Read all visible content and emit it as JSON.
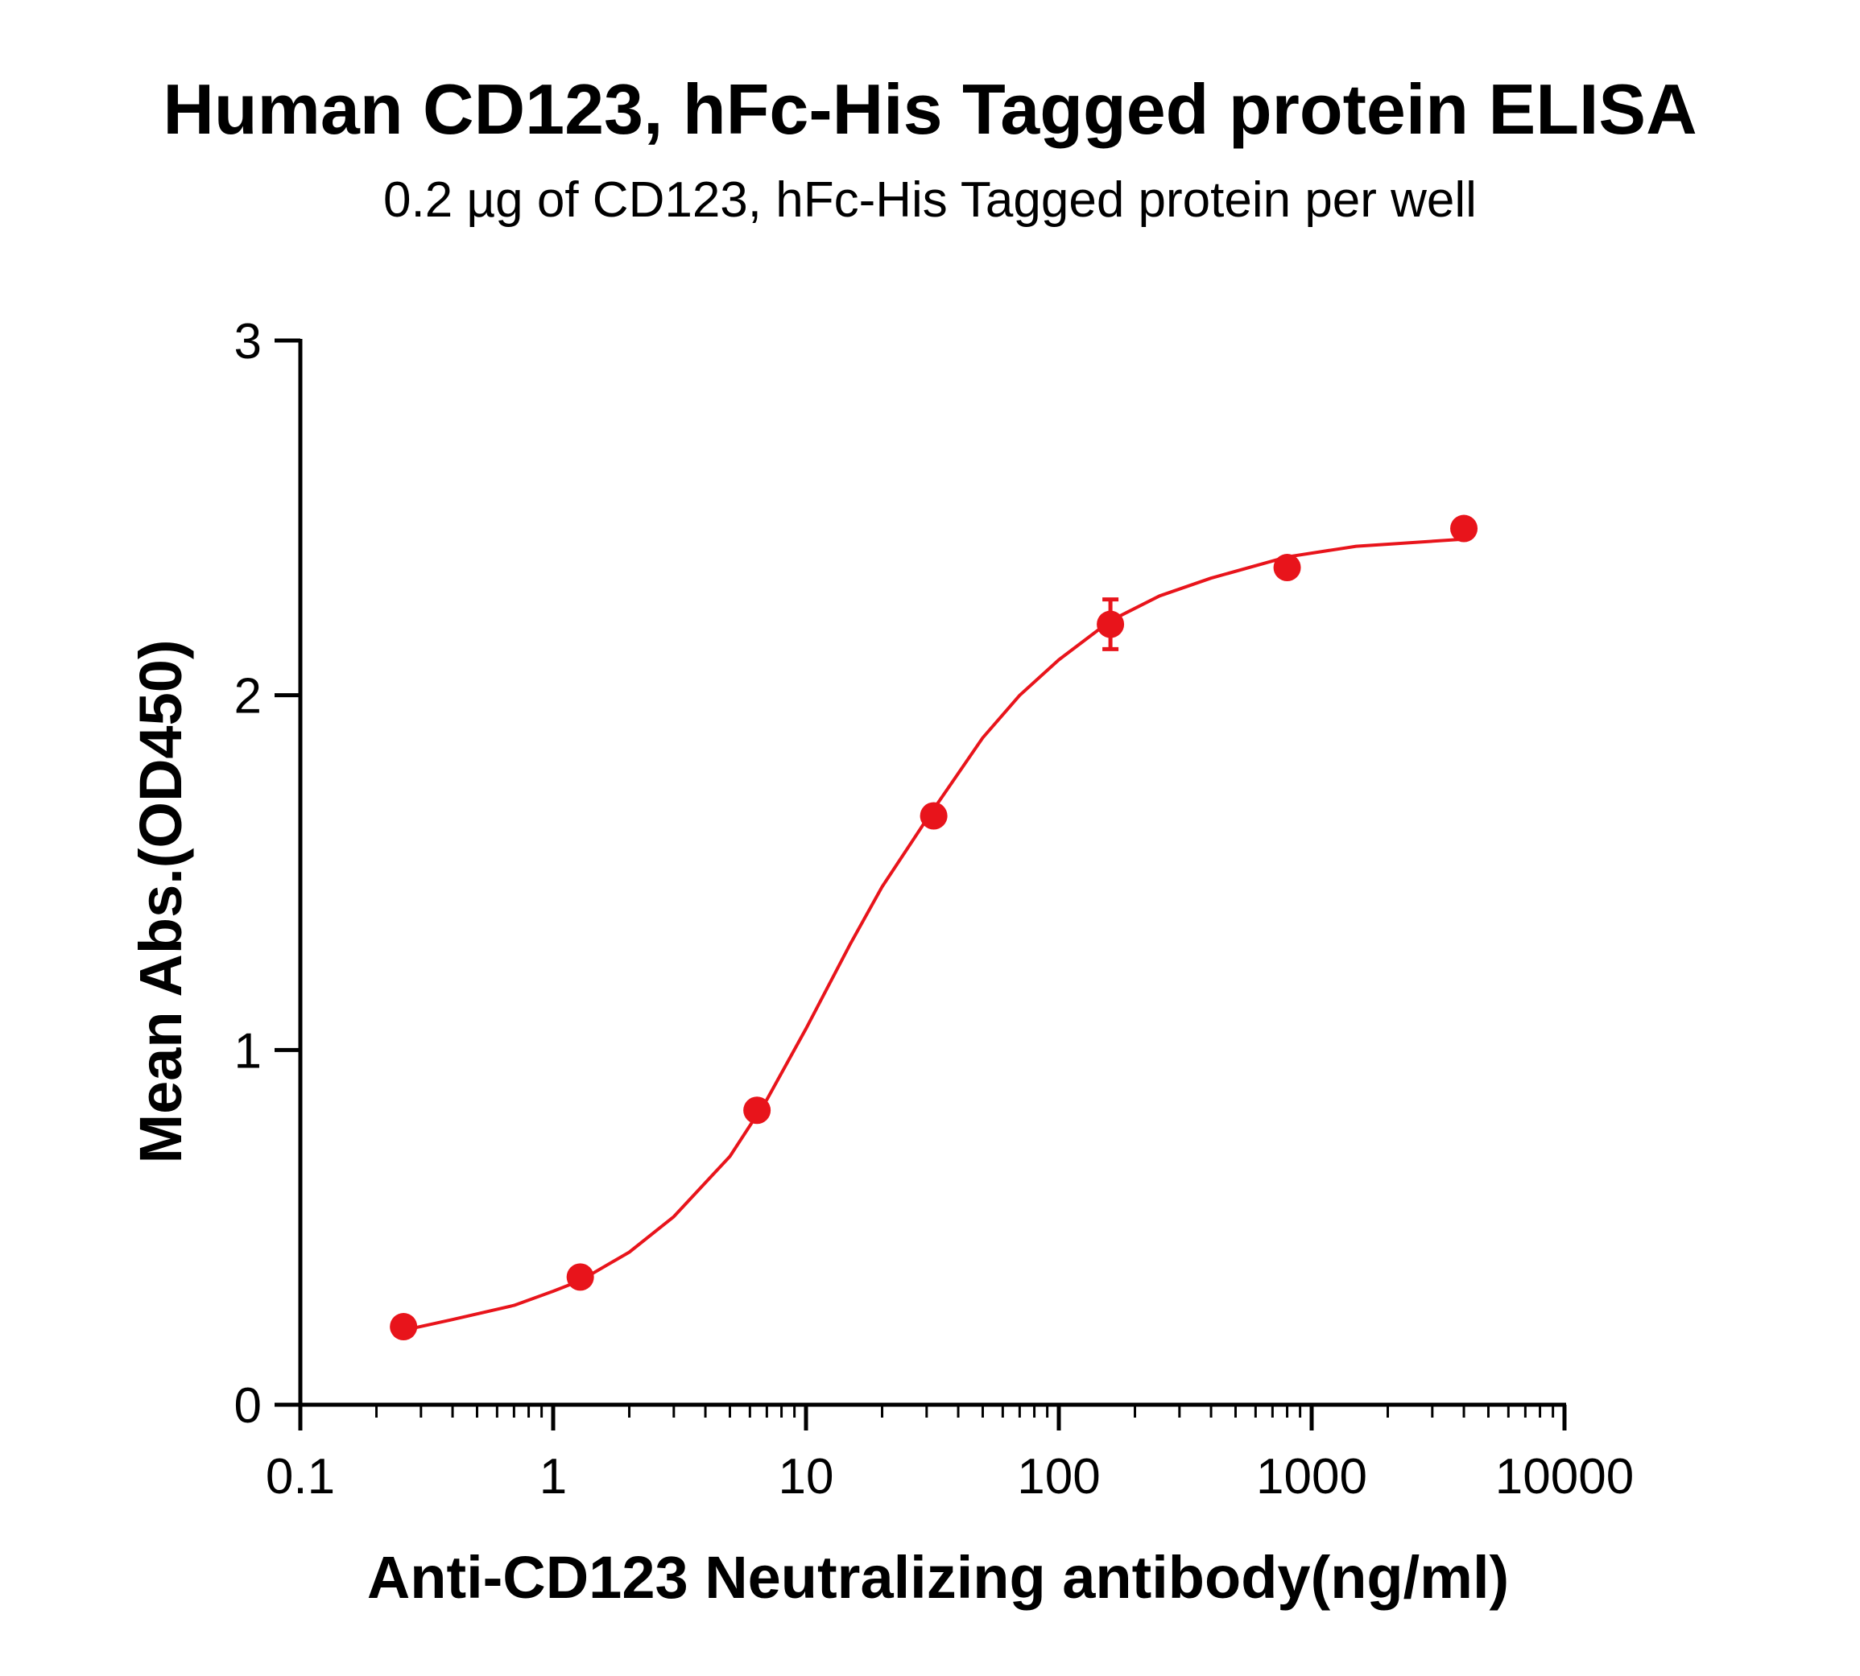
{
  "title": "Human CD123, hFc-His Tagged protein ELISA",
  "subtitle": "0.2 µg of CD123, hFc-His Tagged protein per well",
  "colors": {
    "series": "#e8141b",
    "axis": "#000000"
  },
  "chart_data": {
    "type": "scatter",
    "title": "Human CD123, hFc-His Tagged protein ELISA",
    "subtitle": "0.2 µg of CD123, hFc-His Tagged protein per well",
    "xlabel": "Anti-CD123 Neutralizing antibody(ng/ml)",
    "ylabel": "Mean Abs.(OD450)",
    "xscale": "log",
    "xlim": [
      0.1,
      10000
    ],
    "ylim": [
      0,
      3
    ],
    "xticks": [
      0.1,
      1,
      10,
      100,
      1000,
      10000
    ],
    "xtick_labels": [
      "0.1",
      "1",
      "10",
      "100",
      "1000",
      "10000"
    ],
    "yticks": [
      0,
      1,
      2,
      3
    ],
    "ytick_labels": [
      "0",
      "1",
      "2",
      "3"
    ],
    "grid": false,
    "legend": "none",
    "series": [
      {
        "x": [
          0.256,
          1.28,
          6.4,
          32,
          160,
          800,
          4000
        ],
        "y": [
          0.22,
          0.36,
          0.83,
          1.66,
          2.2,
          2.36,
          2.47
        ],
        "error": [
          0.01,
          0.01,
          0.01,
          0.01,
          0.07,
          0.01,
          0.01
        ],
        "fit": "four-parameter logistic",
        "fit_curve": {
          "x": [
            0.256,
            0.4,
            0.7,
            1,
            1.28,
            2,
            3,
            5,
            7,
            10,
            15,
            20,
            30,
            50,
            70,
            100,
            160,
            250,
            400,
            800,
            1500,
            4000
          ],
          "y": [
            0.21,
            0.24,
            0.28,
            0.32,
            0.35,
            0.43,
            0.53,
            0.7,
            0.86,
            1.06,
            1.3,
            1.46,
            1.65,
            1.88,
            2.0,
            2.1,
            2.21,
            2.28,
            2.33,
            2.39,
            2.42,
            2.44
          ]
        }
      }
    ]
  }
}
